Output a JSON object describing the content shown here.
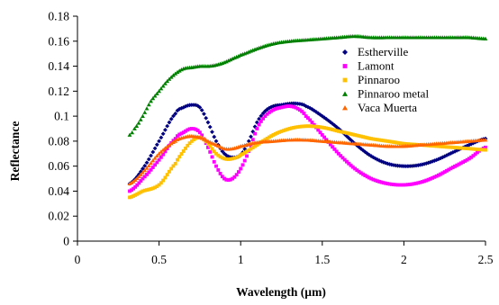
{
  "chart_data": {
    "type": "scatter",
    "title": "",
    "xlabel": "Wavelength (µm)",
    "ylabel": "Reflectance",
    "xlim": [
      0,
      2.5
    ],
    "ylim": [
      0,
      0.18
    ],
    "x_ticks": [
      0,
      0.5,
      1,
      1.5,
      2,
      2.5
    ],
    "x_tick_labels": [
      "0",
      "0.5",
      "1",
      "1.5",
      "2",
      "2.5"
    ],
    "y_ticks": [
      0,
      0.02,
      0.04,
      0.06,
      0.08,
      0.1,
      0.12,
      0.14,
      0.16,
      0.18
    ],
    "y_tick_labels": [
      "0",
      "0.02",
      "0.04",
      "0.06",
      "0.08",
      "0.1",
      "0.12",
      "0.14",
      "0.16",
      "0.18"
    ],
    "grid": false,
    "legend_position": "right",
    "series": [
      {
        "name": "Estherville",
        "color": "#000080",
        "marker": "diamond",
        "x": [
          0.32,
          0.4,
          0.5,
          0.6,
          0.65,
          0.7,
          0.75,
          0.8,
          0.85,
          0.9,
          0.95,
          1.0,
          1.05,
          1.1,
          1.15,
          1.2,
          1.25,
          1.3,
          1.35,
          1.4,
          1.5,
          1.6,
          1.7,
          1.8,
          1.9,
          2.0,
          2.1,
          2.2,
          2.3,
          2.4,
          2.5
        ],
        "y": [
          0.046,
          0.058,
          0.08,
          0.102,
          0.107,
          0.109,
          0.107,
          0.095,
          0.08,
          0.07,
          0.067,
          0.069,
          0.08,
          0.095,
          0.104,
          0.108,
          0.109,
          0.11,
          0.11,
          0.108,
          0.1,
          0.09,
          0.078,
          0.068,
          0.062,
          0.06,
          0.061,
          0.065,
          0.071,
          0.077,
          0.082
        ]
      },
      {
        "name": "Lamont",
        "color": "#ff00ff",
        "marker": "square",
        "x": [
          0.32,
          0.4,
          0.5,
          0.6,
          0.65,
          0.7,
          0.75,
          0.8,
          0.85,
          0.9,
          0.95,
          1.0,
          1.05,
          1.1,
          1.15,
          1.2,
          1.25,
          1.3,
          1.35,
          1.4,
          1.5,
          1.6,
          1.7,
          1.8,
          1.9,
          2.0,
          2.1,
          2.2,
          2.3,
          2.4,
          2.5
        ],
        "y": [
          0.04,
          0.05,
          0.065,
          0.082,
          0.087,
          0.09,
          0.087,
          0.075,
          0.06,
          0.05,
          0.05,
          0.058,
          0.072,
          0.09,
          0.1,
          0.105,
          0.107,
          0.108,
          0.106,
          0.1,
          0.085,
          0.07,
          0.058,
          0.05,
          0.046,
          0.045,
          0.047,
          0.052,
          0.059,
          0.066,
          0.075
        ]
      },
      {
        "name": "Pinnaroo",
        "color": "#ffc000",
        "marker": "square",
        "x": [
          0.32,
          0.4,
          0.5,
          0.6,
          0.65,
          0.7,
          0.75,
          0.8,
          0.85,
          0.9,
          0.95,
          1.0,
          1.1,
          1.2,
          1.3,
          1.4,
          1.5,
          1.6,
          1.7,
          1.8,
          1.9,
          2.0,
          2.1,
          2.2,
          2.3,
          2.4,
          2.5
        ],
        "y": [
          0.035,
          0.04,
          0.045,
          0.062,
          0.072,
          0.08,
          0.083,
          0.078,
          0.07,
          0.066,
          0.066,
          0.069,
          0.077,
          0.085,
          0.09,
          0.092,
          0.091,
          0.088,
          0.085,
          0.082,
          0.08,
          0.078,
          0.077,
          0.076,
          0.075,
          0.074,
          0.073
        ]
      },
      {
        "name": "Pinnaroo metal",
        "color": "#008000",
        "marker": "triangle",
        "x": [
          0.32,
          0.35,
          0.4,
          0.45,
          0.5,
          0.55,
          0.6,
          0.65,
          0.7,
          0.75,
          0.8,
          0.85,
          0.9,
          0.95,
          1.0,
          1.1,
          1.2,
          1.3,
          1.4,
          1.5,
          1.6,
          1.7,
          1.8,
          1.9,
          2.0,
          2.1,
          2.2,
          2.3,
          2.4,
          2.5
        ],
        "y": [
          0.085,
          0.09,
          0.1,
          0.112,
          0.12,
          0.128,
          0.134,
          0.138,
          0.139,
          0.14,
          0.14,
          0.141,
          0.143,
          0.146,
          0.149,
          0.154,
          0.158,
          0.16,
          0.161,
          0.162,
          0.163,
          0.164,
          0.163,
          0.163,
          0.163,
          0.163,
          0.163,
          0.163,
          0.163,
          0.162
        ]
      },
      {
        "name": "Vaca Muerta",
        "color": "#ff6600",
        "marker": "triangle",
        "x": [
          0.32,
          0.4,
          0.5,
          0.6,
          0.65,
          0.7,
          0.75,
          0.8,
          0.85,
          0.9,
          0.95,
          1.0,
          1.1,
          1.2,
          1.3,
          1.4,
          1.5,
          1.6,
          1.7,
          1.8,
          1.9,
          2.0,
          2.1,
          2.2,
          2.3,
          2.4,
          2.5
        ],
        "y": [
          0.046,
          0.055,
          0.07,
          0.08,
          0.083,
          0.084,
          0.083,
          0.08,
          0.077,
          0.074,
          0.074,
          0.076,
          0.079,
          0.08,
          0.081,
          0.081,
          0.08,
          0.079,
          0.078,
          0.077,
          0.076,
          0.076,
          0.077,
          0.078,
          0.079,
          0.08,
          0.081
        ]
      }
    ]
  }
}
